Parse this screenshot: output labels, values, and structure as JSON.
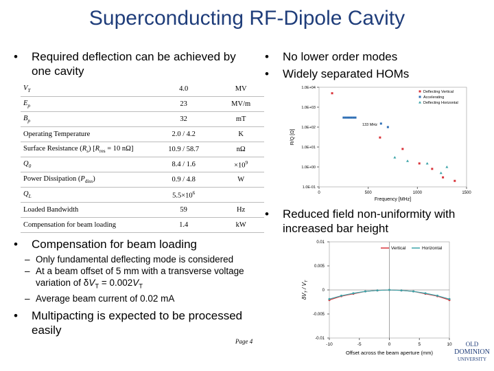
{
  "slide": {
    "title": "Superconducting RF-Dipole Cavity",
    "left_bullets": [
      {
        "text": "Required deflection can be achieved by one cavity"
      },
      {
        "text": "Compensation for beam loading",
        "sub": [
          [
            "Only fundamental deflecting mode is considered"
          ],
          [
            "At a beam offset of 5 mm with a transverse voltage variation of δ",
            "V",
            "T",
            " = 0.002",
            "V",
            "T"
          ],
          [
            "Average beam current of 0.02 mA"
          ]
        ]
      },
      {
        "text": "Multipacting is expected to be processed easily"
      }
    ],
    "right_bullets": [
      "No lower order modes",
      "Widely separated HOMs",
      "Reduced field non-uniformity with increased bar height"
    ],
    "footer": "Page 4",
    "logo": [
      "OLD",
      "DOMINION",
      "UNIVERSITY"
    ]
  },
  "table": {
    "rows": [
      {
        "label": [
          "V",
          "T"
        ],
        "value": "4.0",
        "unit": "MV"
      },
      {
        "label": [
          "E",
          "p"
        ],
        "value": "23",
        "unit": "MV/m"
      },
      {
        "label": [
          "B",
          "p"
        ],
        "value": "32",
        "unit": "mT"
      },
      {
        "label": [
          "Operating Temperature"
        ],
        "value": "2.0 / 4.2",
        "unit": "K"
      },
      {
        "label": [
          "Surface Resistance (",
          "R",
          "s",
          ") [",
          "R",
          "res",
          " = 10 nΩ]"
        ],
        "value": "10.9 / 58.7",
        "unit": "nΩ"
      },
      {
        "label": [
          "Q",
          "0"
        ],
        "value": "8.4 / 1.6",
        "unit": [
          "×10",
          "9"
        ]
      },
      {
        "label": [
          "Power Dissipation (",
          "P",
          "diss",
          ")"
        ],
        "value": "0.9 / 4.8",
        "unit": "W"
      },
      {
        "label": [
          "Q",
          "L"
        ],
        "value": [
          "5.5×10",
          "6"
        ]
      },
      {
        "label": [
          "Loaded Bandwidth"
        ],
        "value": "59",
        "unit": "Hz"
      },
      {
        "label": [
          "Compensation for beam loading"
        ],
        "value": "1.4",
        "unit": "kW"
      }
    ]
  },
  "chart_data": [
    {
      "type": "scatter",
      "xlabel": "Frequency [MHz]",
      "ylabel": "R/Q [Ω]",
      "annotation": "133 MHz",
      "log_y": true,
      "xlim": [
        0,
        1500
      ],
      "xticks": [
        0,
        500,
        1000,
        1500
      ],
      "ylim": [
        0.1,
        10000
      ],
      "yticks": [
        {
          "value": 10000,
          "label": "1.0E+04"
        },
        {
          "value": 1000,
          "label": "1.0E+03"
        },
        {
          "value": 100,
          "label": "1.0E+02"
        },
        {
          "value": 10,
          "label": "1.0E+01"
        },
        {
          "value": 1,
          "label": "1.0E+00"
        },
        {
          "value": 0.1,
          "label": "1.0E-01"
        }
      ],
      "legend": "upper right",
      "series": [
        {
          "name": "Deflecting Vertical",
          "color": "#d9343a",
          "x": [
            133,
            620,
            850,
            1020,
            1150,
            1260,
            1380
          ],
          "values": [
            5000,
            30,
            8,
            1.5,
            0.8,
            0.3,
            0.2
          ]
        },
        {
          "name": "Accelerating",
          "color": "#2f6fb5",
          "x": [
            250,
            270,
            290,
            310,
            330,
            350,
            370,
            630,
            700
          ],
          "values": [
            300,
            300,
            300,
            300,
            300,
            300,
            300,
            150,
            100
          ]
        },
        {
          "name": "Deflecting Horizontal",
          "color": "#3aa3a8",
          "x": [
            770,
            900,
            1100,
            1240,
            1300
          ],
          "values": [
            3,
            2,
            1.5,
            0.5,
            1
          ]
        }
      ]
    },
    {
      "type": "line",
      "xlabel": "Offset across the beam aperture (mm)",
      "ylabel": [
        "δV",
        "T",
        " / V",
        "T"
      ],
      "xlim": [
        -10,
        10
      ],
      "xticks": [
        -10,
        -5,
        0,
        5,
        10
      ],
      "ylim": [
        -0.01,
        0.01
      ],
      "yticks": [
        0.01,
        0.005,
        0,
        -0.005,
        -0.01
      ],
      "legend": "upper center",
      "x": [
        -10,
        -8,
        -6,
        -4,
        -2,
        0,
        2,
        4,
        6,
        8,
        10
      ],
      "series": [
        {
          "name": "Vertical",
          "color": "#d9343a",
          "values": [
            -0.0021,
            -0.0013,
            -0.0008,
            -0.0003,
            -0.0001,
            0,
            -0.0001,
            -0.0003,
            -0.0008,
            -0.0013,
            -0.0021
          ]
        },
        {
          "name": "Horizontal",
          "color": "#3aa3a8",
          "values": [
            -0.0019,
            -0.0012,
            -0.0007,
            -0.0003,
            -0.0001,
            0,
            -0.0001,
            -0.0003,
            -0.0007,
            -0.0012,
            -0.0019
          ]
        }
      ]
    }
  ]
}
